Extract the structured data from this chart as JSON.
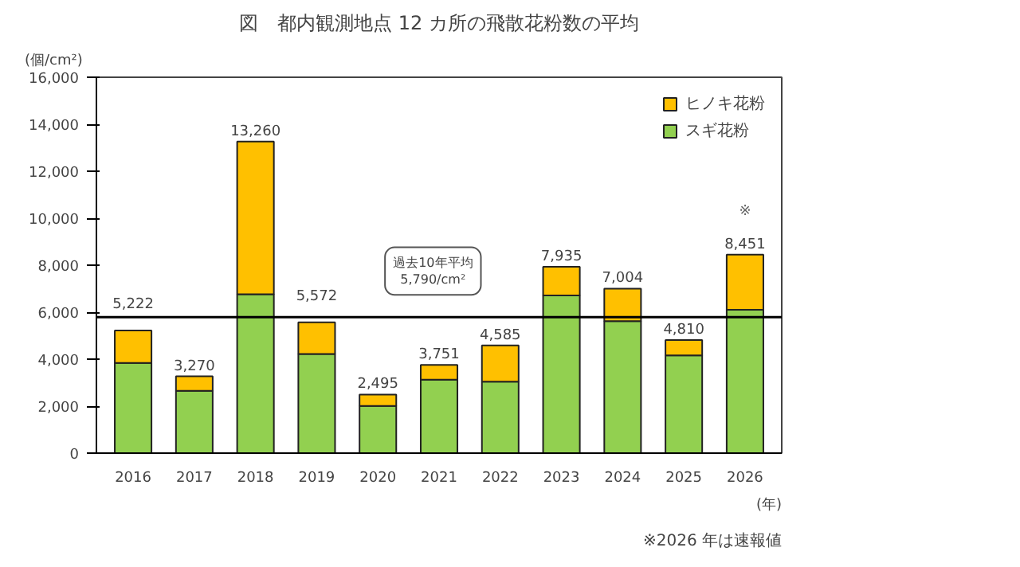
{
  "chart_data": {
    "type": "bar",
    "stacked": true,
    "title": "図　都内観測地点 12 カ所の飛散花粉数の平均",
    "ylabel": "(個/cm²)",
    "xlabel": "(年)",
    "categories": [
      "2016",
      "2017",
      "2018",
      "2019",
      "2020",
      "2021",
      "2022",
      "2023",
      "2024",
      "2025",
      "2026"
    ],
    "series": [
      {
        "name": "スギ花粉",
        "color": "#92d050",
        "values": [
          3840,
          2650,
          6760,
          4220,
          2010,
          3130,
          3040,
          6710,
          5620,
          4160,
          6100
        ]
      },
      {
        "name": "ヒノキ花粉",
        "color": "#ffc000",
        "values": [
          1382,
          620,
          6500,
          1352,
          485,
          621,
          1545,
          1225,
          1384,
          650,
          2351
        ]
      }
    ],
    "totals": [
      "5,222",
      "3,270",
      "13,260",
      "5,572",
      "2,495",
      "3,751",
      "4,585",
      "7,935",
      "7,004",
      "4,810",
      "8,451"
    ],
    "ylim": [
      0,
      16000
    ],
    "yticks": [
      {
        "value": 0,
        "label": "0"
      },
      {
        "value": 2000,
        "label": "2,000"
      },
      {
        "value": 4000,
        "label": "4,000"
      },
      {
        "value": 6000,
        "label": "6,000"
      },
      {
        "value": 8000,
        "label": "8,000"
      },
      {
        "value": 10000,
        "label": "10,000"
      },
      {
        "value": 12000,
        "label": "12,000"
      },
      {
        "value": 14000,
        "label": "14,000"
      },
      {
        "value": 16000,
        "label": "16,000"
      }
    ],
    "ref_lines": [
      {
        "axis": "y",
        "value": 5790,
        "label": "過去10年平均\n5,790/cm²",
        "color": "#000000"
      }
    ],
    "annotations": [
      "※",
      "※2026 年は速報値"
    ],
    "legend": "top right",
    "grid": false
  }
}
